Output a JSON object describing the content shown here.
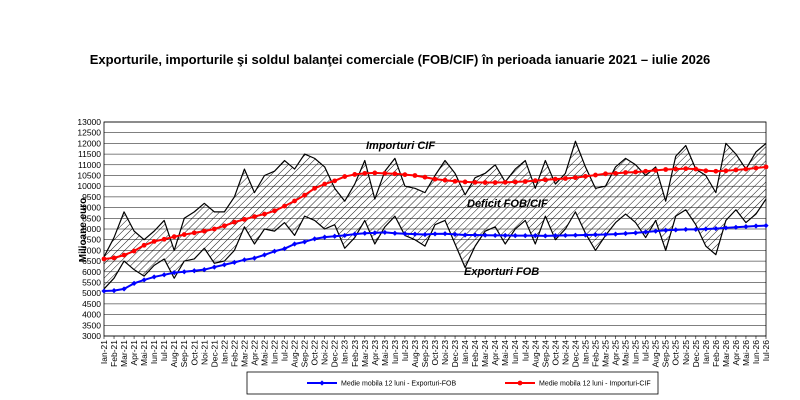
{
  "chart_data": {
    "type": "line",
    "title": "Exporturile, importurile şi soldul balanţei comerciale (FOB/CIF) în perioada ianuarie 2021 – iulie 2026",
    "ylabel": "Milioane euro",
    "ylim": [
      3000,
      13000
    ],
    "yticks": [
      3000,
      3500,
      4000,
      4500,
      5000,
      5500,
      6000,
      6500,
      7000,
      7500,
      8000,
      8500,
      9000,
      9500,
      10000,
      10500,
      11000,
      11500,
      12000,
      12500,
      13000
    ],
    "grid": true,
    "categories": [
      "Ian-21",
      "Feb-21",
      "Mar-21",
      "Apr-21",
      "Mai-21",
      "Iun-21",
      "Iul-21",
      "Aug-21",
      "Sep-21",
      "Oct-21",
      "Noi-21",
      "Dec-21",
      "Ian-22",
      "Feb-22",
      "Mar-22",
      "Apr-22",
      "Mai-22",
      "Iun-22",
      "Iul-22",
      "Aug-22",
      "Sep-22",
      "Oct-22",
      "Noi-22",
      "Dec-22",
      "Ian-23",
      "Feb-23",
      "Mar-23",
      "Apr-23",
      "Mai-23",
      "Iun-23",
      "Iul-23",
      "Aug-23",
      "Sep-23",
      "Oct-23",
      "Noi-23",
      "Dec-23",
      "Ian-24",
      "Feb-24",
      "Mar-24",
      "Apr-24",
      "Mai-24",
      "Iun-24",
      "Iul-24",
      "Aug-24",
      "Sep-24",
      "Oct-24",
      "Noi-24",
      "Dec-24",
      "Ian-25",
      "Feb-25",
      "Mar-25",
      "Apr-25",
      "Mai-25",
      "Iun-25",
      "Iul-25",
      "Aug-25",
      "Sep-25",
      "Oct-25",
      "Noi-25",
      "Dec-25",
      "Ian-26",
      "Feb-26",
      "Mar-26",
      "Apr-26",
      "Mai-26",
      "Iun-26",
      "Iul-26"
    ],
    "series": [
      {
        "name": "Importuri CIF",
        "color": "#000000",
        "values": [
          6700,
          7600,
          8800,
          7900,
          7500,
          7900,
          8400,
          7000,
          8500,
          8800,
          9200,
          8800,
          8800,
          9500,
          10800,
          9700,
          10500,
          10700,
          11200,
          10800,
          11500,
          11300,
          10900,
          9900,
          9300,
          10100,
          11200,
          9400,
          10700,
          11300,
          10000,
          9900,
          9700,
          10500,
          11200,
          10600,
          9600,
          10400,
          10600,
          11000,
          10200,
          10800,
          11200,
          9900,
          11200,
          10100,
          10600,
          12100,
          10900,
          9900,
          10000,
          10900,
          11300,
          11000,
          10500,
          10900,
          9300,
          11400,
          11900,
          10800,
          10500,
          9700,
          12000,
          11500,
          10800,
          11600,
          12000
        ]
      },
      {
        "name": "Exporturi FOB",
        "color": "#000000",
        "values": [
          5200,
          5700,
          6500,
          6100,
          5800,
          6300,
          6600,
          5700,
          6500,
          6600,
          7100,
          6400,
          6500,
          7000,
          8100,
          7300,
          8000,
          7900,
          8300,
          7700,
          8600,
          8400,
          8000,
          8200,
          7100,
          7600,
          8400,
          7300,
          8100,
          8600,
          7700,
          7500,
          7200,
          8200,
          8400,
          7300,
          6200,
          7200,
          7900,
          8100,
          7300,
          8000,
          8400,
          7300,
          8600,
          7500,
          8000,
          8800,
          7800,
          7000,
          7700,
          8300,
          8700,
          8300,
          7600,
          8400,
          7000,
          8600,
          8900,
          8200,
          7200,
          6800,
          8400,
          8900,
          8300,
          8700,
          9400
        ]
      },
      {
        "name": "Medie mobila 12 luni - Exporturi-FOB",
        "color": "#0000ff",
        "values": [
          5100,
          5120,
          5200,
          5460,
          5620,
          5760,
          5860,
          5960,
          6000,
          6050,
          6100,
          6220,
          6330,
          6440,
          6560,
          6640,
          6790,
          6960,
          7080,
          7300,
          7400,
          7540,
          7620,
          7660,
          7700,
          7760,
          7800,
          7820,
          7840,
          7800,
          7780,
          7760,
          7740,
          7770,
          7780,
          7750,
          7720,
          7720,
          7710,
          7700,
          7700,
          7690,
          7690,
          7690,
          7680,
          7690,
          7700,
          7710,
          7720,
          7730,
          7740,
          7760,
          7790,
          7820,
          7860,
          7900,
          7940,
          7960,
          7980,
          7980,
          8000,
          8020,
          8050,
          8080,
          8110,
          8140,
          8160
        ]
      },
      {
        "name": "Medie mobila 12 luni - Importuri-CIF",
        "color": "#ff0000",
        "values": [
          6600,
          6650,
          6780,
          6970,
          7240,
          7420,
          7520,
          7640,
          7740,
          7820,
          7900,
          8000,
          8150,
          8320,
          8450,
          8580,
          8700,
          8850,
          9070,
          9310,
          9580,
          9900,
          10100,
          10250,
          10450,
          10550,
          10600,
          10620,
          10600,
          10580,
          10540,
          10500,
          10420,
          10330,
          10280,
          10230,
          10200,
          10180,
          10170,
          10170,
          10180,
          10200,
          10220,
          10260,
          10300,
          10330,
          10360,
          10400,
          10460,
          10520,
          10580,
          10600,
          10640,
          10660,
          10700,
          10740,
          10780,
          10800,
          10820,
          10800,
          10720,
          10700,
          10720,
          10760,
          10800,
          10850,
          10900
        ]
      }
    ],
    "annotations": [
      "Importuri CIF",
      "Deficit FOB/CIF",
      "Exporturi FOB"
    ],
    "legend": {
      "placement": "bottom",
      "entries": [
        "Medie mobila 12 luni - Exporturi-FOB",
        "Medie mobila 12 luni - Importuri-CIF"
      ]
    }
  }
}
